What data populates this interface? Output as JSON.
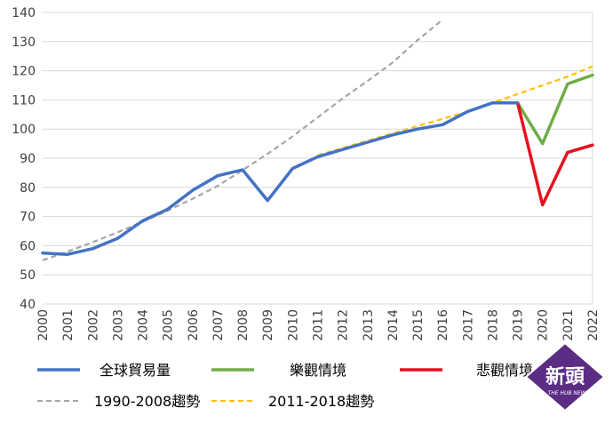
{
  "chart_data": {
    "type": "line",
    "x": [
      2000,
      2001,
      2002,
      2003,
      2004,
      2005,
      2006,
      2007,
      2008,
      2009,
      2010,
      2011,
      2012,
      2013,
      2014,
      2015,
      2016,
      2017,
      2018,
      2019,
      2020,
      2021,
      2022
    ],
    "xlim": [
      2000,
      2022
    ],
    "ylim": [
      40,
      140
    ],
    "yticks": [
      40,
      50,
      60,
      70,
      80,
      90,
      100,
      110,
      120,
      130,
      140
    ],
    "grid": "horizontal",
    "legend_position": "bottom",
    "series": [
      {
        "name": "全球貿易量",
        "style": "solid",
        "color": "#4472C4",
        "x": [
          2000,
          2001,
          2002,
          2003,
          2004,
          2005,
          2006,
          2007,
          2008,
          2009,
          2010,
          2011,
          2012,
          2013,
          2014,
          2015,
          2016,
          2017,
          2018,
          2019
        ],
        "values": [
          57.5,
          57,
          59,
          62.5,
          68.5,
          72.5,
          79,
          84,
          86,
          75.5,
          86.5,
          90.5,
          93,
          95.5,
          98,
          100,
          101.5,
          106,
          109,
          109
        ]
      },
      {
        "name": "樂觀情境",
        "style": "solid",
        "color": "#70AD47",
        "x": [
          2019,
          2020,
          2021,
          2022
        ],
        "values": [
          109,
          95,
          115.5,
          118.5
        ]
      },
      {
        "name": "悲觀情境",
        "style": "solid",
        "color": "#E8101F",
        "x": [
          2019,
          2020,
          2021,
          2022
        ],
        "values": [
          109,
          74,
          92,
          94.5
        ]
      },
      {
        "name": "1990-2008趨勢",
        "style": "dashed",
        "color": "#A6A6A6",
        "x": [
          2000,
          2001,
          2002,
          2003,
          2004,
          2005,
          2006,
          2007,
          2008,
          2009,
          2010,
          2011,
          2012,
          2013,
          2014,
          2015,
          2016
        ],
        "values": [
          55,
          58,
          61.2,
          64.6,
          68.2,
          72,
          76.1,
          80.5,
          85.9,
          91.5,
          97.5,
          104,
          110.5,
          116.5,
          122.8,
          130.5,
          137.5
        ]
      },
      {
        "name": "2011-2018趨勢",
        "style": "dashed",
        "color": "#FFC000",
        "x": [
          2011,
          2012,
          2013,
          2014,
          2015,
          2016,
          2017,
          2018,
          2019,
          2020,
          2021,
          2022
        ],
        "values": [
          91,
          93.5,
          96,
          98.5,
          101,
          103.5,
          106,
          109,
          112,
          115,
          118,
          121.5
        ]
      }
    ]
  },
  "legend": {
    "row1": [
      "全球貿易量",
      "樂觀情境",
      "悲觀情境"
    ],
    "row2": [
      "1990-2008趨勢",
      "2011-2018趨勢"
    ]
  },
  "logo": {
    "text": "新頭",
    "subtext": "THE HUB NEWS",
    "color": "#5B2C83"
  }
}
